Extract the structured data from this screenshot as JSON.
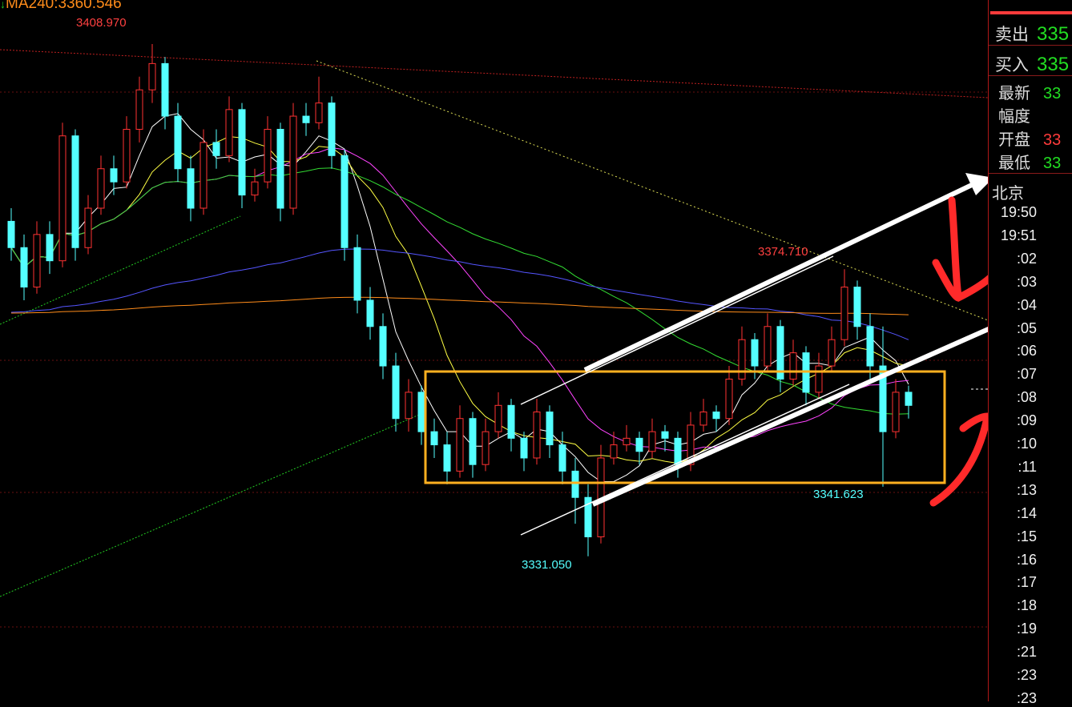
{
  "header": {
    "ma_label": "MA240:3360.546",
    "ma_arrow": "↓"
  },
  "chart_data": {
    "type": "candlestick",
    "ohlc": [
      [
        3382,
        3384,
        3376,
        3378
      ],
      [
        3378,
        3380,
        3370,
        3372
      ],
      [
        3372,
        3382,
        3371,
        3380
      ],
      [
        3380,
        3382,
        3374,
        3376
      ],
      [
        3376,
        3397,
        3375,
        3395
      ],
      [
        3395,
        3396,
        3376,
        3378
      ],
      [
        3378,
        3386,
        3377,
        3384
      ],
      [
        3384,
        3392,
        3383,
        3390
      ],
      [
        3390,
        3392,
        3386,
        3388
      ],
      [
        3388,
        3398,
        3387,
        3396
      ],
      [
        3396,
        3404,
        3394,
        3402
      ],
      [
        3402,
        3408.97,
        3400,
        3406
      ],
      [
        3406,
        3407,
        3396,
        3398
      ],
      [
        3398,
        3400,
        3388,
        3390
      ],
      [
        3390,
        3392,
        3382,
        3384
      ],
      [
        3384,
        3396,
        3383,
        3394
      ],
      [
        3394,
        3396,
        3390,
        3392
      ],
      [
        3392,
        3401,
        3391,
        3399
      ],
      [
        3399,
        3400,
        3384,
        3386
      ],
      [
        3386,
        3390,
        3385,
        3388
      ],
      [
        3388,
        3398,
        3387,
        3396
      ],
      [
        3396,
        3397,
        3382,
        3384
      ],
      [
        3384,
        3400,
        3383,
        3398
      ],
      [
        3398,
        3400,
        3395,
        3397
      ],
      [
        3397,
        3404,
        3396,
        3400
      ],
      [
        3400,
        3401,
        3390,
        3392
      ],
      [
        3392,
        3393,
        3376,
        3378
      ],
      [
        3378,
        3380,
        3368,
        3370
      ],
      [
        3370,
        3372,
        3364,
        3366
      ],
      [
        3366,
        3368,
        3358,
        3360
      ],
      [
        3360,
        3362,
        3350,
        3352
      ],
      [
        3352,
        3358,
        3350,
        3356
      ],
      [
        3356,
        3357,
        3348,
        3350
      ],
      [
        3350,
        3352,
        3346,
        3348
      ],
      [
        3348,
        3350,
        3342,
        3344
      ],
      [
        3344,
        3354,
        3343,
        3352
      ],
      [
        3352,
        3353,
        3343,
        3345
      ],
      [
        3345,
        3352,
        3344,
        3350
      ],
      [
        3350,
        3356,
        3349,
        3354
      ],
      [
        3354,
        3355,
        3347,
        3349
      ],
      [
        3349,
        3350,
        3344,
        3346
      ],
      [
        3346,
        3355,
        3345,
        3353
      ],
      [
        3353,
        3354,
        3346,
        3348
      ],
      [
        3348,
        3350,
        3342,
        3344
      ],
      [
        3344,
        3346,
        3336,
        3340
      ],
      [
        3340,
        3342,
        3331.05,
        3334
      ],
      [
        3334,
        3348,
        3333,
        3346
      ],
      [
        3346,
        3350,
        3345,
        3348
      ],
      [
        3348,
        3351,
        3347,
        3349
      ],
      [
        3349,
        3350,
        3345,
        3347
      ],
      [
        3347,
        3352,
        3346,
        3350
      ],
      [
        3350,
        3351,
        3347,
        3349
      ],
      [
        3349,
        3350,
        3343,
        3345
      ],
      [
        3345,
        3353,
        3344,
        3351
      ],
      [
        3351,
        3355,
        3350,
        3353
      ],
      [
        3353,
        3354,
        3350,
        3352
      ],
      [
        3352,
        3360,
        3351,
        3358
      ],
      [
        3358,
        3366,
        3357,
        3364
      ],
      [
        3364,
        3365,
        3358,
        3360
      ],
      [
        3360,
        3368,
        3359,
        3366
      ],
      [
        3366,
        3367,
        3356,
        3358
      ],
      [
        3358,
        3364,
        3357,
        3362
      ],
      [
        3362,
        3363,
        3354,
        3356
      ],
      [
        3356,
        3362,
        3355,
        3360
      ],
      [
        3360,
        3366,
        3359,
        3364
      ],
      [
        3364,
        3374.71,
        3363,
        3372
      ],
      [
        3372,
        3373,
        3364,
        3366
      ],
      [
        3366,
        3368,
        3358,
        3360
      ],
      [
        3360,
        3366,
        3341.623,
        3350
      ],
      [
        3350,
        3358,
        3349,
        3356
      ],
      [
        3356,
        3357,
        3352,
        3354
      ]
    ],
    "annotations": [
      {
        "label": "3408.970",
        "value": 3408.97,
        "type": "high"
      },
      {
        "label": "3374.710",
        "value": 3374.71,
        "type": "high"
      },
      {
        "label": "3331.050",
        "value": 3331.05,
        "type": "low"
      },
      {
        "label": "3341.623",
        "value": 3341.623,
        "type": "low"
      }
    ],
    "moving_averages": [
      {
        "period": 5,
        "color": "#ffffff"
      },
      {
        "period": 10,
        "color": "#ffff44"
      },
      {
        "period": 20,
        "color": "#ff44ff"
      },
      {
        "period": 40,
        "color": "#33dd33"
      },
      {
        "period": 60,
        "color": "#5555ff"
      },
      {
        "period": 240,
        "color": "#ff8c1a"
      }
    ],
    "colors": {
      "up": "#ff3232",
      "down": "#54ffff",
      "box": "#ffb020"
    },
    "grid": true
  },
  "panel": {
    "sell": {
      "label": "卖出",
      "value": "335"
    },
    "buy": {
      "label": "买入",
      "value": "335"
    },
    "quotes": [
      {
        "label": "最新",
        "value": "33",
        "color": "#22dd22"
      },
      {
        "label": "幅度",
        "value": "",
        "color": "#ddd"
      },
      {
        "label": "开盘",
        "value": "33",
        "color": "#ff3b3b"
      },
      {
        "label": "最低",
        "value": "33",
        "color": "#22dd22"
      }
    ],
    "timezone": "北京",
    "times": [
      "19:50",
      "19:51",
      ":02",
      ":03",
      ":04",
      ":05",
      ":06",
      ":07",
      ":08",
      ":09",
      ":10",
      ":11",
      ":13",
      ":14",
      ":15",
      ":16",
      ":17",
      ":18",
      ":19",
      ":21",
      ":23",
      ":23"
    ]
  }
}
